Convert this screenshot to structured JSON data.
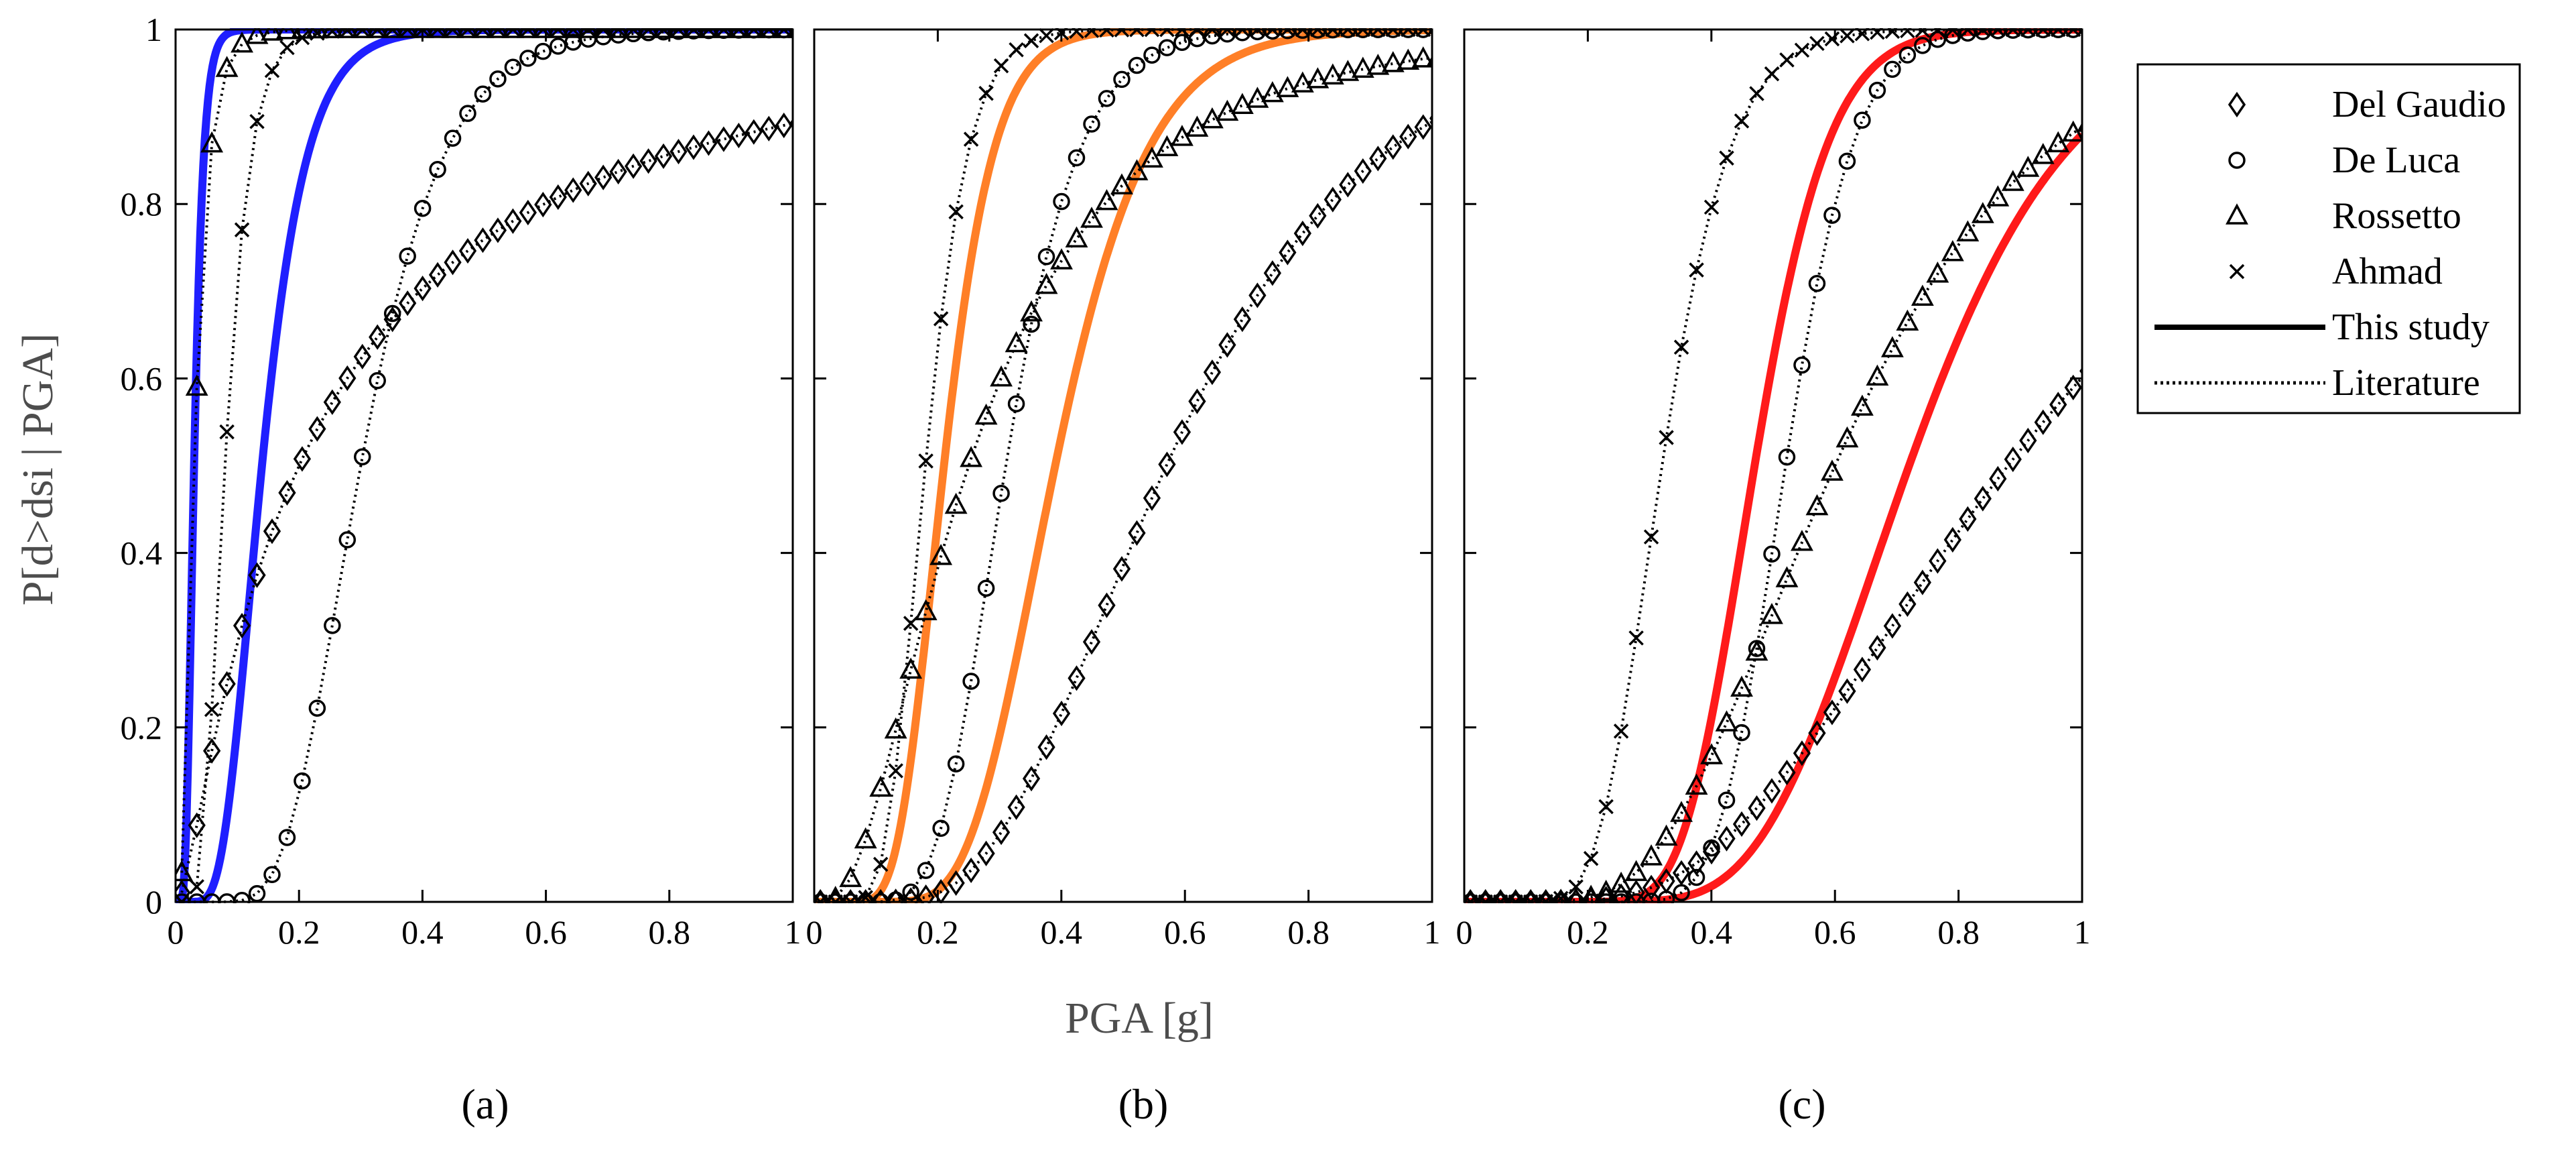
{
  "chart_data": {
    "type": "line",
    "xlabel": "PGA [g]",
    "ylabel": "P[d>dsi | PGA]",
    "xlim": [
      0,
      1
    ],
    "ylim": [
      0,
      1
    ],
    "x_ticks": [
      0,
      0.2,
      0.4,
      0.6,
      0.8,
      1
    ],
    "x_tick_labels": [
      "0",
      "0.2",
      "0.4",
      "0.6",
      "0.8",
      "1"
    ],
    "y_ticks": [
      0,
      0.2,
      0.4,
      0.6,
      0.8,
      1
    ],
    "y_tick_labels": [
      "0",
      "0.2",
      "0.4",
      "0.6",
      "0.8",
      "1"
    ],
    "legend": {
      "placement": "right",
      "entries": [
        {
          "label": "Del Gaudio",
          "marker": "diamond",
          "line": "none"
        },
        {
          "label": "De Luca",
          "marker": "circle",
          "line": "none"
        },
        {
          "label": "Rossetto",
          "marker": "triangle",
          "line": "none"
        },
        {
          "label": "Ahmad",
          "marker": "x",
          "line": "none"
        },
        {
          "label": "This study",
          "marker": "none",
          "line": "solid"
        },
        {
          "label": "Literature",
          "marker": "none",
          "line": "dotted"
        }
      ]
    },
    "panels": [
      {
        "label": "(a)",
        "study_color": "#1f1fff",
        "series": [
          {
            "name": "This study",
            "style": "solid",
            "median": 0.03,
            "beta": 0.4
          },
          {
            "name": "This study",
            "style": "solid",
            "median": 0.14,
            "beta": 0.4
          },
          {
            "name": "Del Gaudio",
            "marker": "diamond",
            "median": 0.2,
            "beta": 1.3
          },
          {
            "name": "De Luca",
            "marker": "circle",
            "median": 0.3,
            "beta": 0.35
          },
          {
            "name": "Rossetto",
            "marker": "triangle",
            "median": 0.03,
            "beta": 0.6
          },
          {
            "name": "Ahmad",
            "marker": "x",
            "median": 0.08,
            "beta": 0.4
          }
        ]
      },
      {
        "label": "(b)",
        "study_color": "#ff7f27",
        "series": [
          {
            "name": "This study",
            "style": "solid",
            "median": 0.21,
            "beta": 0.3
          },
          {
            "name": "This study",
            "style": "solid",
            "median": 0.39,
            "beta": 0.3
          },
          {
            "name": "Del Gaudio",
            "marker": "diamond",
            "median": 0.57,
            "beta": 0.45
          },
          {
            "name": "De Luca",
            "marker": "circle",
            "median": 0.31,
            "beta": 0.3
          },
          {
            "name": "Rossetto",
            "marker": "triangle",
            "median": 0.25,
            "beta": 0.75
          },
          {
            "name": "Ahmad",
            "marker": "x",
            "median": 0.18,
            "beta": 0.3
          }
        ]
      },
      {
        "label": "(c)",
        "study_color": "#ff1a1a",
        "series": [
          {
            "name": "This study",
            "style": "solid",
            "median": 0.47,
            "beta": 0.2
          },
          {
            "name": "This study",
            "style": "solid",
            "median": 0.72,
            "beta": 0.28
          },
          {
            "name": "Del Gaudio",
            "marker": "diamond",
            "median": 0.88,
            "beta": 0.5
          },
          {
            "name": "De Luca",
            "marker": "circle",
            "median": 0.52,
            "beta": 0.17
          },
          {
            "name": "Rossetto",
            "marker": "triangle",
            "median": 0.6,
            "beta": 0.42
          },
          {
            "name": "Ahmad",
            "marker": "x",
            "median": 0.32,
            "beta": 0.27
          }
        ]
      }
    ]
  }
}
